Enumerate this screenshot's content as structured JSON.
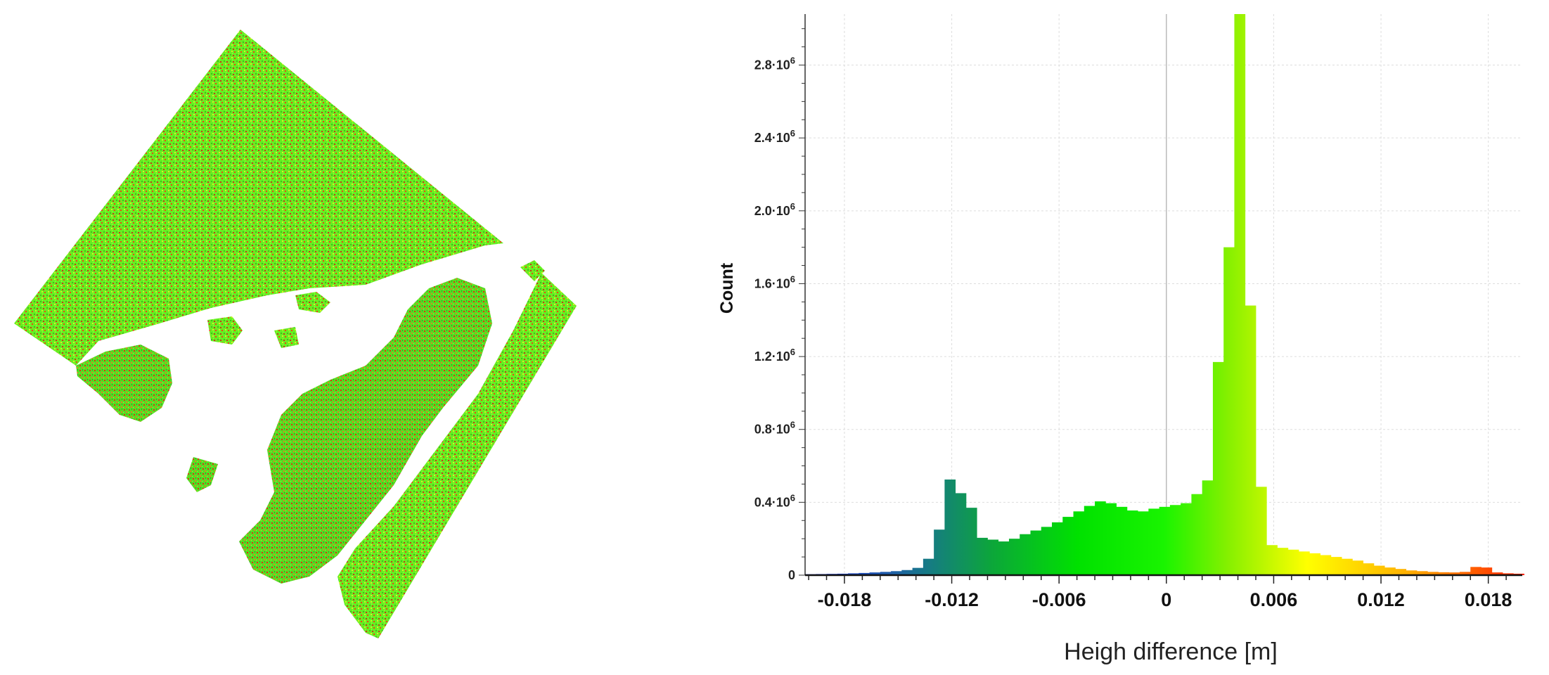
{
  "colors": {
    "point_green": "#66ee22",
    "point_red": "#ee4411",
    "point_yellow": "#ddee22",
    "grid": "#dddddd",
    "colormap": [
      "#1a2ad8",
      "#1f5ea8",
      "#167a86",
      "#0ca63a",
      "#00e100",
      "#19f400",
      "#86f000",
      "#ffff00",
      "#ffb000",
      "#ff2000"
    ]
  },
  "chart_data": {
    "type": "bar",
    "title": "",
    "xlabel": "Heigh difference [m]",
    "ylabel": "Count",
    "xlim": [
      -0.0202,
      0.0199
    ],
    "ylim": [
      0,
      3080000
    ],
    "grid": true,
    "x_ticks": [
      {
        "value": -0.018,
        "label": "-0.018"
      },
      {
        "value": -0.012,
        "label": "-0.012"
      },
      {
        "value": -0.006,
        "label": "-0.006"
      },
      {
        "value": 0,
        "label": "0"
      },
      {
        "value": 0.006,
        "label": "0.006"
      },
      {
        "value": 0.012,
        "label": "0.012"
      },
      {
        "value": 0.018,
        "label": "0.018"
      }
    ],
    "y_ticks": [
      {
        "value": 0,
        "base": "0",
        "exp": ""
      },
      {
        "value": 400000,
        "base": "0.4·10",
        "exp": "6"
      },
      {
        "value": 800000,
        "base": "0.8·10",
        "exp": "6"
      },
      {
        "value": 1200000,
        "base": "1.2·10",
        "exp": "6"
      },
      {
        "value": 1600000,
        "base": "1.6·10",
        "exp": "6"
      },
      {
        "value": 2000000,
        "base": "2.0·10",
        "exp": "6"
      },
      {
        "value": 2400000,
        "base": "2.4·10",
        "exp": "6"
      },
      {
        "value": 2800000,
        "base": "2.8·10",
        "exp": "6"
      }
    ],
    "bin_start": -0.0202,
    "bin_width": 0.0006,
    "values": [
      5000,
      6000,
      7000,
      8000,
      10000,
      12000,
      15000,
      18000,
      22000,
      28000,
      40000,
      90000,
      250000,
      525000,
      450000,
      370000,
      205000,
      195000,
      185000,
      200000,
      225000,
      245000,
      265000,
      290000,
      320000,
      350000,
      380000,
      405000,
      395000,
      375000,
      355000,
      350000,
      365000,
      375000,
      385000,
      395000,
      445000,
      520000,
      1170000,
      1800000,
      3080000,
      1480000,
      485000,
      165000,
      150000,
      140000,
      130000,
      120000,
      110000,
      100000,
      90000,
      80000,
      65000,
      52000,
      42000,
      34000,
      26000,
      22000,
      18000,
      16000,
      15000,
      18000,
      45000,
      42000,
      15000,
      10000,
      8000
    ]
  }
}
